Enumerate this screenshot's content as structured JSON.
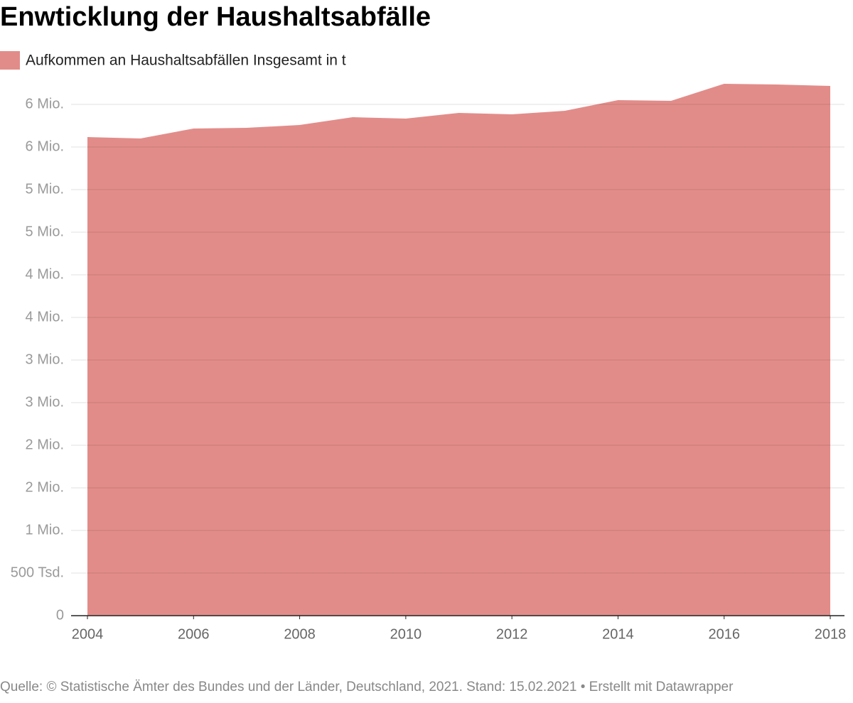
{
  "chart_data": {
    "type": "area",
    "title": "Enwticklung der Haushaltsabfälle",
    "source": "Quelle: © Statistische Ämter des Bundes und der Länder, Deutschland, 2021. Stand: 15.02.2021 • Erstellt mit Datawrapper",
    "x": [
      2004,
      2005,
      2006,
      2007,
      2008,
      2009,
      2010,
      2011,
      2012,
      2013,
      2014,
      2015,
      2016,
      2017,
      2018
    ],
    "series": [
      {
        "name": "Aufkommen an Haushaltsabfällen Insgesamt in t",
        "color": "#e28c89",
        "values": [
          5617000,
          5600000,
          5717000,
          5725000,
          5758000,
          5850000,
          5833000,
          5900000,
          5883000,
          5925000,
          6050000,
          6042000,
          6242000,
          6233000,
          6217000
        ]
      }
    ],
    "xlim": [
      2004,
      2018
    ],
    "xticks": [
      2004,
      2006,
      2008,
      2010,
      2012,
      2014,
      2016,
      2018
    ],
    "ylim": [
      0,
      6300000
    ],
    "yticks": [
      0,
      {
        "value": 500000,
        "label": "500 Tsd."
      },
      {
        "value": 1000000,
        "label": "1 Mio."
      },
      {
        "value": 1500000,
        "label": "2 Mio."
      },
      {
        "value": 2000000,
        "label": "2 Mio."
      },
      {
        "value": 2500000,
        "label": "3 Mio."
      },
      {
        "value": 3000000,
        "label": "3 Mio."
      },
      {
        "value": 3500000,
        "label": "4 Mio."
      },
      {
        "value": 4000000,
        "label": "4 Mio."
      },
      {
        "value": 4500000,
        "label": "5 Mio."
      },
      {
        "value": 5000000,
        "label": "5 Mio."
      },
      {
        "value": 5500000,
        "label": "6 Mio."
      },
      {
        "value": 6000000,
        "label": "6 Mio."
      }
    ],
    "grid": true
  }
}
